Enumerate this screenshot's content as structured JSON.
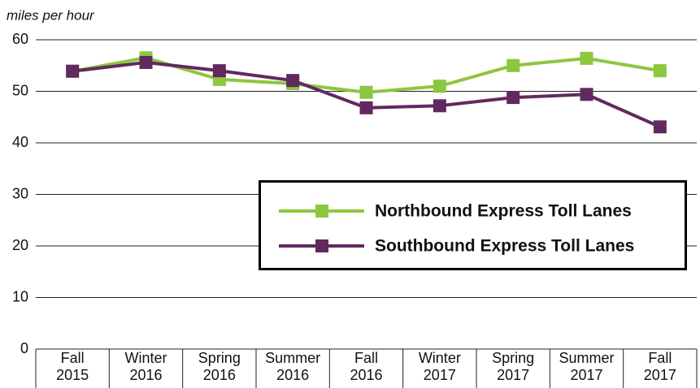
{
  "chart_data": {
    "type": "line",
    "y_axis_label": "miles per hour",
    "categories": [
      "Fall 2015",
      "Winter 2016",
      "Spring 2016",
      "Summer 2016",
      "Fall 2016",
      "Winter 2017",
      "Spring 2017",
      "Summer 2017",
      "Fall 2017"
    ],
    "series": [
      {
        "name": "Northbound Express Toll Lanes",
        "color": "#8dc63f",
        "values": [
          53.9,
          56.5,
          52.3,
          51.5,
          49.8,
          51.0,
          55.0,
          56.4,
          54.0
        ]
      },
      {
        "name": "Southbound Express Toll Lanes",
        "color": "#62295f",
        "values": [
          53.9,
          55.6,
          54.0,
          52.1,
          46.8,
          47.2,
          48.8,
          49.4,
          43.1
        ]
      }
    ],
    "ylim": [
      0,
      60
    ],
    "yticks": [
      0,
      10,
      20,
      30,
      40,
      50,
      60
    ],
    "grid": true,
    "legend": "right"
  }
}
